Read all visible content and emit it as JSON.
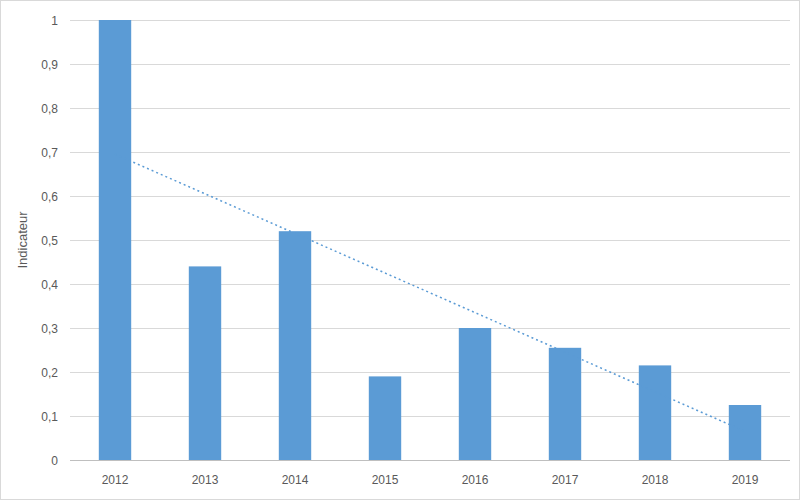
{
  "chart_data": {
    "type": "bar",
    "y_label": "Indicateur",
    "categories": [
      "2012",
      "2013",
      "2014",
      "2015",
      "2016",
      "2017",
      "2018",
      "2019"
    ],
    "series": [
      {
        "type": "bar",
        "color": "#5b9bd5",
        "values": [
          1,
          0.44,
          0.52,
          0.19,
          0.3,
          0.255,
          0.215,
          0.125
        ]
      },
      {
        "type": "line",
        "line_style": "dotted",
        "color": "#5b9bd5",
        "values": [
          0.695,
          0.605,
          0.515,
          0.425,
          0.335,
          0.245,
          0.155,
          0.065
        ]
      }
    ],
    "ylim": [
      0,
      1
    ],
    "yticks": [
      0,
      {
        "value": 0.1,
        "label": "0,1"
      },
      {
        "value": 0.2,
        "label": "0,2"
      },
      {
        "value": 0.3,
        "label": "0,3"
      },
      {
        "value": 0.4,
        "label": "0,4"
      },
      {
        "value": 0.5,
        "label": "0,5"
      },
      {
        "value": 0.6,
        "label": "0,6"
      },
      {
        "value": 0.7,
        "label": "0,7"
      },
      {
        "value": 0.8,
        "label": "0,8"
      },
      {
        "value": 0.9,
        "label": "0,9"
      },
      1
    ],
    "grid": true
  }
}
